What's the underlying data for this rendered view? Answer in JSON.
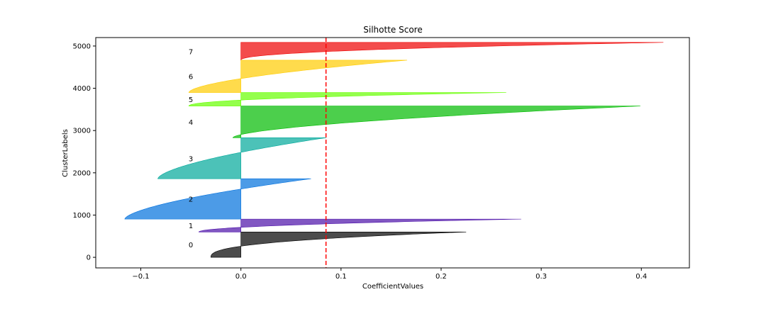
{
  "chart_data": {
    "type": "area",
    "title": "Silhotte Score",
    "xlabel": "CoefficientValues",
    "ylabel": "ClusterLabels",
    "xlim": [
      -0.145,
      0.448
    ],
    "ylim": [
      -250,
      5200
    ],
    "xticks": [
      -0.1,
      0.0,
      0.1,
      0.2,
      0.3,
      0.4
    ],
    "xtick_labels": [
      "−0.1",
      "0.0",
      "0.1",
      "0.2",
      "0.3",
      "0.4"
    ],
    "yticks": [
      0,
      1000,
      2000,
      3000,
      4000,
      5000
    ],
    "ytick_labels": [
      "0",
      "1000",
      "2000",
      "3000",
      "4000",
      "5000"
    ],
    "grid": false,
    "average_line": {
      "x": 0.085,
      "color": "#ff0000",
      "style": "dashed"
    },
    "label_x": -0.05,
    "clusters": [
      {
        "label": "0",
        "color": "#000000",
        "y_lower": 0,
        "y_upper": 600,
        "min": -0.03,
        "max": 0.225,
        "k": 2.6
      },
      {
        "label": "1",
        "color": "#4b0fa8",
        "y_lower": 600,
        "y_upper": 905,
        "min": -0.042,
        "max": 0.28,
        "k": 2.0
      },
      {
        "label": "2",
        "color": "#0070dd",
        "y_lower": 905,
        "y_upper": 1860,
        "min": -0.116,
        "max": 0.07,
        "k": 1.6
      },
      {
        "label": "3",
        "color": "#00a89a",
        "y_lower": 1860,
        "y_upper": 2830,
        "min": -0.083,
        "max": 0.085,
        "k": 1.6
      },
      {
        "label": "4",
        "color": "#00bb00",
        "y_lower": 2830,
        "y_upper": 3580,
        "min": -0.008,
        "max": 0.399,
        "k": 1.7
      },
      {
        "label": "5",
        "color": "#66ff00",
        "y_lower": 3580,
        "y_upper": 3900,
        "min": -0.052,
        "max": 0.265,
        "k": 2.2
      },
      {
        "label": "6",
        "color": "#ffcc00",
        "y_lower": 3900,
        "y_upper": 4665,
        "min": -0.052,
        "max": 0.166,
        "k": 1.7
      },
      {
        "label": "7",
        "color": "#ee0000",
        "y_lower": 4665,
        "y_upper": 5085,
        "min": 0.0,
        "max": 0.422,
        "k": 2.2
      }
    ]
  }
}
